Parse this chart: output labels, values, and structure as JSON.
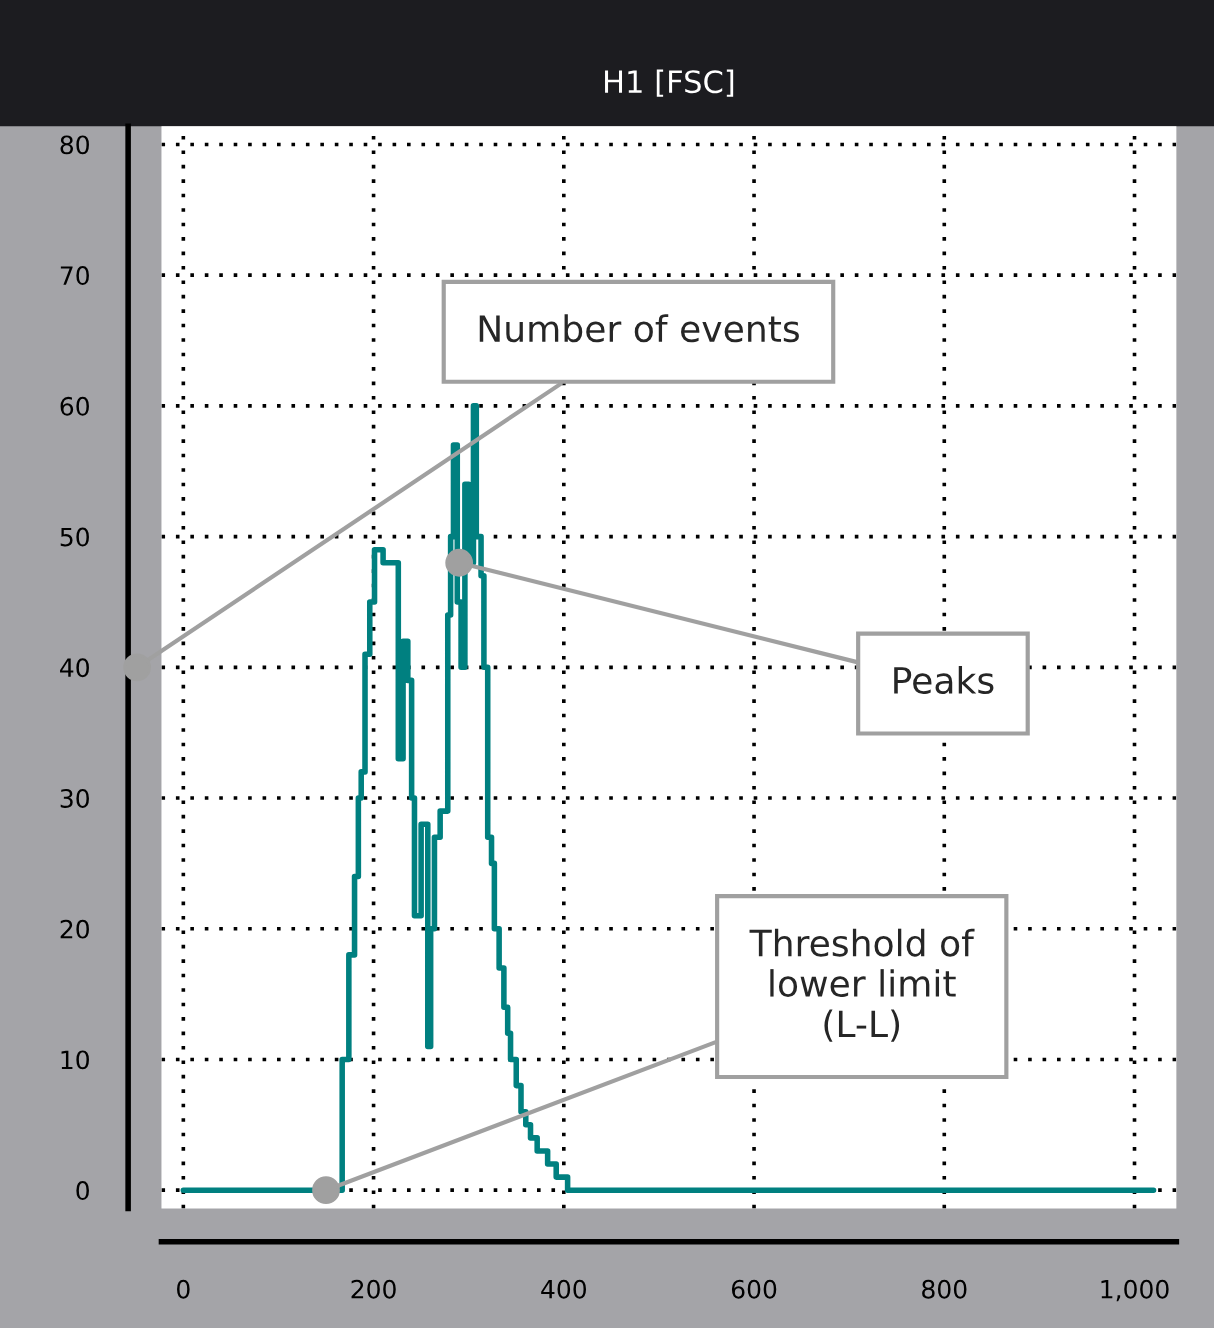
{
  "chart_data": {
    "type": "step",
    "title": "H1 [FSC]",
    "color": "#008080",
    "x": [
      0,
      160,
      167,
      174,
      180,
      184,
      187,
      191,
      196,
      201,
      210,
      222,
      226,
      231,
      236,
      240,
      243,
      250,
      257,
      260,
      264,
      270,
      275,
      278,
      281,
      284,
      288,
      292,
      296,
      300,
      305,
      308,
      313,
      316,
      320,
      324,
      327,
      332,
      337,
      341,
      344,
      350,
      355,
      360,
      365,
      372,
      383,
      392,
      404,
      1020
    ],
    "values": [
      0,
      0,
      10,
      18,
      24,
      30,
      32,
      41,
      45,
      49,
      48,
      48,
      33,
      42,
      39,
      30,
      21,
      28,
      11,
      20,
      27,
      29,
      29,
      44,
      50,
      57,
      45,
      40,
      54,
      48,
      60,
      50,
      47,
      40,
      27,
      25,
      20,
      17,
      14,
      12,
      10,
      8,
      6,
      5,
      4,
      3,
      2,
      1,
      0,
      0
    ],
    "xlim": [
      -23,
      1044
    ],
    "ylim": [
      -1.4,
      81.4
    ],
    "xticks": [
      0,
      200,
      400,
      600,
      800,
      {
        "value": 1000,
        "label": "1,000"
      }
    ],
    "yticks": [
      0,
      10,
      20,
      30,
      40,
      50,
      60,
      70,
      80
    ],
    "grid": true,
    "annotations": [
      "Number of events",
      {
        "text": "Peaks",
        "x": 290,
        "y": 48
      },
      {
        "text": "Threshold of\nlower limit\n(L-L)",
        "x": 150,
        "y": 0
      }
    ]
  }
}
